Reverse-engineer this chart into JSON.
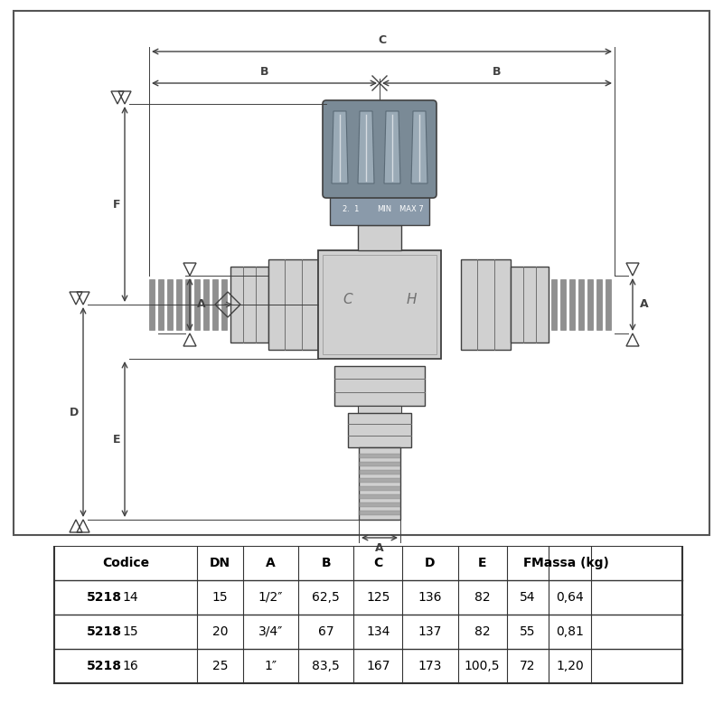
{
  "background_color": "#ffffff",
  "valve_body_color": "#d0d0d0",
  "valve_medium_color": "#b8b8b8",
  "valve_dark_color": "#909090",
  "valve_darker_color": "#707070",
  "valve_head_color": "#7a8a96",
  "valve_head_dark": "#5a6a76",
  "valve_head_grip": "#9aaab6",
  "line_color": "#404040",
  "label_color": "#707070",
  "table_border": "#333333",
  "table_headers": [
    "Codice",
    "DN",
    "A",
    "B",
    "C",
    "D",
    "E",
    "F",
    "Massa (kg)"
  ],
  "table_rows": [
    [
      "5218",
      "14",
      "15",
      "1/2″",
      "62,5",
      "125",
      "136",
      "82",
      "54",
      "0,64"
    ],
    [
      "5218",
      "15",
      "20",
      "3/4″",
      "67",
      "134",
      "137",
      "82",
      "55",
      "0,81"
    ],
    [
      "5218",
      "16",
      "25",
      "1″",
      "83,5",
      "167",
      "173",
      "100,5",
      "72",
      "1,20"
    ]
  ],
  "col_widths": [
    1.65,
    0.62,
    0.62,
    0.72,
    0.72,
    0.72,
    0.72,
    0.62,
    0.62,
    1.2
  ]
}
